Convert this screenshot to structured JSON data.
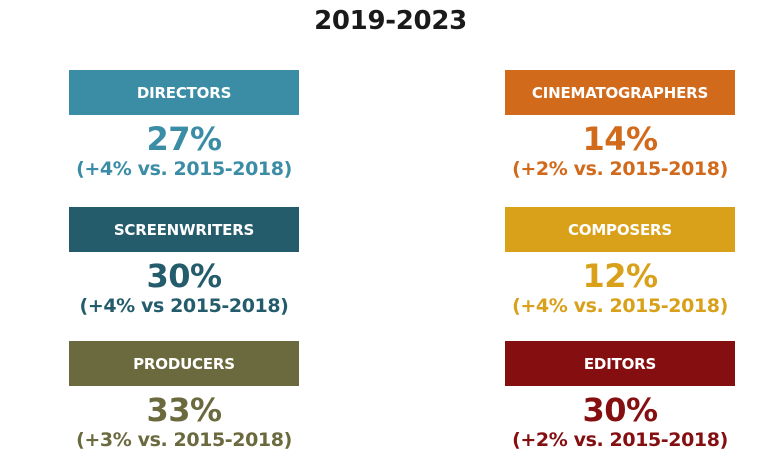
{
  "title": "2019-2023",
  "cards": [
    {
      "label": "DIRECTORS",
      "percent": "27%",
      "change": "(+4% vs. 2015-2018)",
      "color": "#3b8da6"
    },
    {
      "label": "CINEMATOGRAPHERS",
      "percent": "14%",
      "change": "(+2% vs. 2015-2018)",
      "color": "#d26a1b"
    },
    {
      "label": "SCREENWRITERS",
      "percent": "30%",
      "change": "(+4% vs 2015-2018)",
      "color": "#255c6c"
    },
    {
      "label": "COMPOSERS",
      "percent": "12%",
      "change": "(+4% vs. 2015-2018)",
      "color": "#d9a01a"
    },
    {
      "label": "PRODUCERS",
      "percent": "33%",
      "change": "(+3% vs. 2015-2018)",
      "color": "#6b6a3e"
    },
    {
      "label": "EDITORS",
      "percent": "30%",
      "change": "(+2% vs. 2015-2018)",
      "color": "#850e10"
    }
  ]
}
